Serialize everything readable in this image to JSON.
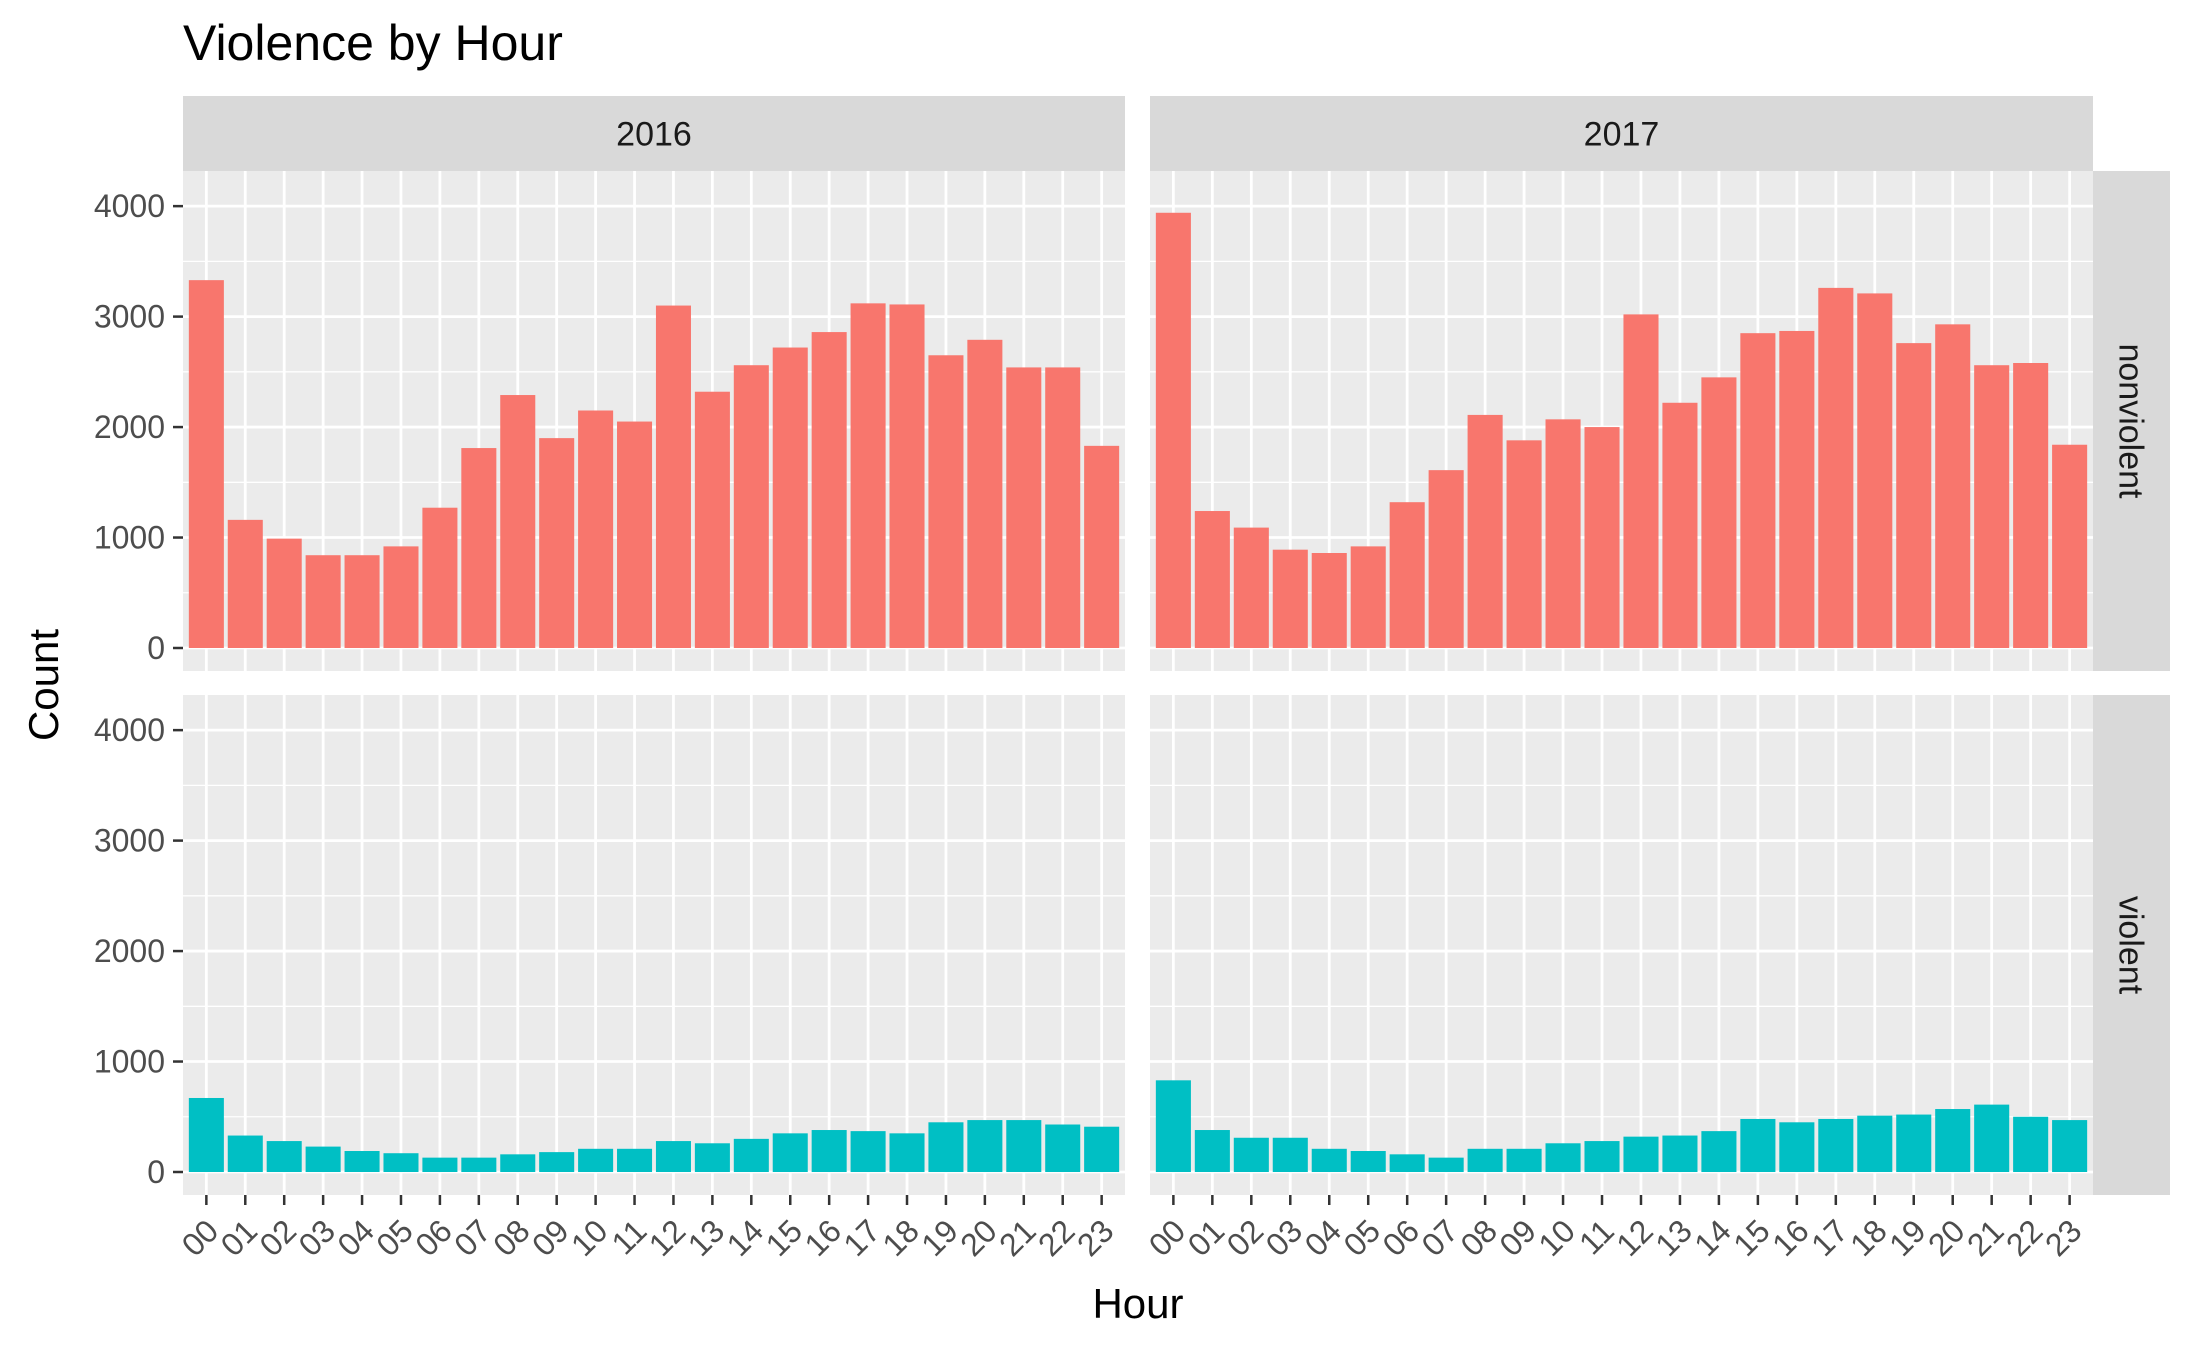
{
  "chart_data": {
    "type": "bar",
    "title": "Violence by Hour",
    "xlabel": "Hour",
    "ylabel": "Count",
    "ylim": [
      0,
      4300
    ],
    "yticks": [
      0,
      1000,
      2000,
      3000,
      4000
    ],
    "grid": true,
    "categories": [
      "00",
      "01",
      "02",
      "03",
      "04",
      "05",
      "06",
      "07",
      "08",
      "09",
      "10",
      "11",
      "12",
      "13",
      "14",
      "15",
      "16",
      "17",
      "18",
      "19",
      "20",
      "21",
      "22",
      "23"
    ],
    "columns": [
      "2016",
      "2017"
    ],
    "rows": [
      "nonviolent",
      "violent"
    ],
    "colors": {
      "nonviolent": "#F8766D",
      "violent": "#00BFC4"
    },
    "panels": [
      {
        "column": "2016",
        "row": "nonviolent",
        "values": [
          3330,
          1160,
          990,
          840,
          840,
          920,
          1270,
          1810,
          2290,
          1900,
          2150,
          2050,
          3100,
          2320,
          2560,
          2720,
          2860,
          3120,
          3110,
          2650,
          2790,
          2540,
          2540,
          1830
        ]
      },
      {
        "column": "2017",
        "row": "nonviolent",
        "values": [
          3940,
          1240,
          1090,
          890,
          860,
          920,
          1320,
          1610,
          2110,
          1880,
          2070,
          2000,
          3020,
          2220,
          2450,
          2850,
          2870,
          3260,
          3210,
          2760,
          2930,
          2560,
          2580,
          1840
        ]
      },
      {
        "column": "2016",
        "row": "violent",
        "values": [
          670,
          330,
          280,
          230,
          190,
          170,
          130,
          130,
          160,
          180,
          210,
          210,
          280,
          260,
          300,
          350,
          380,
          370,
          350,
          450,
          470,
          470,
          430,
          410
        ]
      },
      {
        "column": "2017",
        "row": "violent",
        "values": [
          830,
          380,
          310,
          310,
          210,
          190,
          160,
          130,
          210,
          210,
          260,
          280,
          320,
          330,
          370,
          480,
          450,
          480,
          510,
          520,
          570,
          610,
          500,
          470
        ]
      }
    ]
  }
}
